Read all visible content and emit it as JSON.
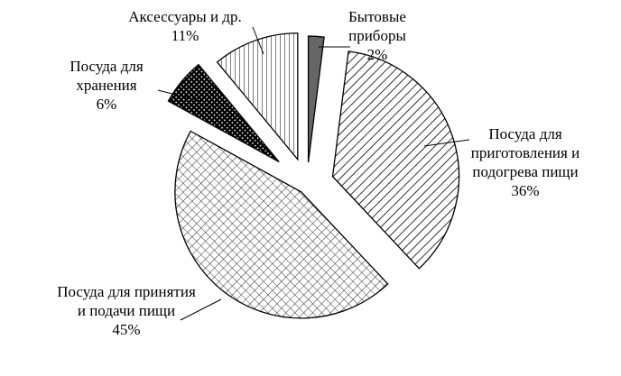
{
  "chart_data": {
    "type": "pie",
    "categories": [
      "Бытовые приборы",
      "Посуда для приготовления и подогрева пищи",
      "Посуда для принятия и подачи пищи",
      "Посуда для хранения",
      "Аксессуары и др."
    ],
    "values": [
      2,
      36,
      45,
      6,
      11
    ],
    "value_labels": [
      "2%",
      "36%",
      "45%",
      "6%",
      "11%"
    ]
  }
}
